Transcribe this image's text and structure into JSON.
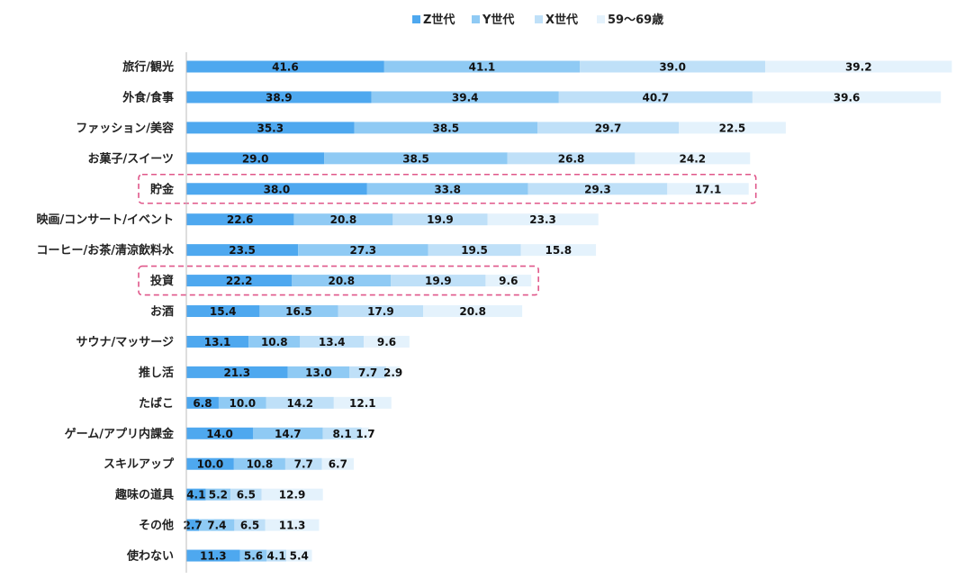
{
  "chart_data": {
    "type": "bar",
    "orientation": "horizontal",
    "stacked": true,
    "categories": [
      "旅行/観光",
      "外食/食事",
      "ファッション/美容",
      "お菓子/スイーツ",
      "貯金",
      "映画/コンサート/イベント",
      "コーヒー/お茶/清涼飲料水",
      "投資",
      "お酒",
      "サウナ/マッサージ",
      "推し活",
      "たばこ",
      "ゲーム/アプリ内課金",
      "スキルアップ",
      "趣味の道具",
      "その他",
      "使わない"
    ],
    "series": [
      {
        "name": "Z世代",
        "color": "#4ea8ef",
        "values": [
          41.6,
          38.9,
          35.3,
          29.0,
          38.0,
          22.6,
          23.5,
          22.2,
          15.4,
          13.1,
          21.3,
          6.8,
          14.0,
          10.0,
          4.1,
          2.7,
          11.3
        ]
      },
      {
        "name": "Y世代",
        "color": "#8fcaf4",
        "values": [
          41.1,
          39.4,
          38.5,
          38.5,
          33.8,
          20.8,
          27.3,
          20.8,
          16.5,
          10.8,
          13.0,
          10.0,
          14.7,
          10.8,
          5.2,
          7.4,
          5.6
        ]
      },
      {
        "name": "X世代",
        "color": "#bfe0f8",
        "values": [
          39.0,
          40.7,
          29.7,
          26.8,
          29.3,
          19.9,
          19.5,
          19.9,
          17.9,
          13.4,
          7.7,
          14.2,
          8.1,
          7.7,
          6.5,
          6.5,
          4.1
        ]
      },
      {
        "name": "59〜69歳",
        "color": "#e4f2fc",
        "values": [
          39.2,
          39.6,
          22.5,
          24.2,
          17.1,
          23.3,
          15.8,
          9.6,
          20.8,
          9.6,
          2.9,
          12.1,
          1.7,
          6.7,
          12.9,
          11.3,
          5.4
        ]
      }
    ],
    "highlighted_categories": [
      "貯金",
      "投資"
    ],
    "highlight_color": "#e0578a",
    "legend_position": "top",
    "grid": false
  }
}
